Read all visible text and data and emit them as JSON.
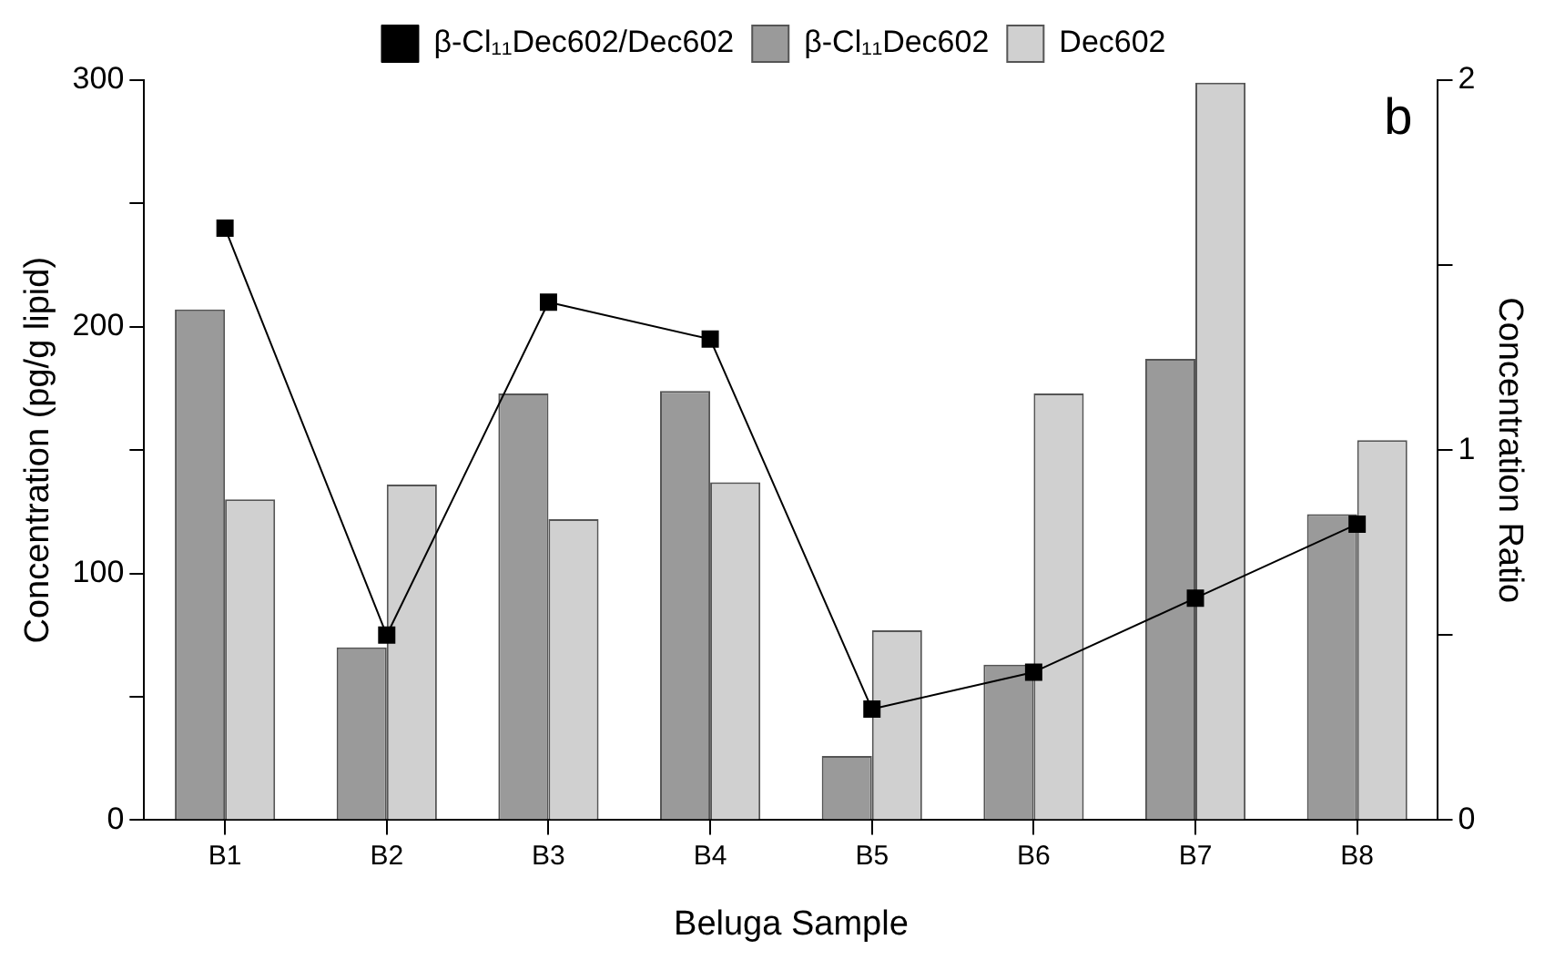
{
  "chart_data": {
    "type": "bar",
    "categories": [
      "B1",
      "B2",
      "B3",
      "B4",
      "B5",
      "B6",
      "B7",
      "B8"
    ],
    "xlabel": "Beluga Sample",
    "ylabel": "Concentration (pg/g lipid)",
    "y2label": "Concentration Ratio",
    "series": [
      {
        "name": "β-Cl₁₁Dec602/Dec602",
        "type": "line",
        "axis": "y2",
        "color": "#000000",
        "values": [
          1.6,
          0.5,
          1.4,
          1.3,
          0.3,
          0.4,
          0.6,
          0.8
        ]
      },
      {
        "name": "β-Cl₁₁Dec602",
        "color": "#9a9a9a",
        "values": [
          207,
          70,
          173,
          174,
          26,
          63,
          187,
          124
        ]
      },
      {
        "name": "Dec602",
        "color": "#d0d0d0",
        "values": [
          130,
          136,
          122,
          137,
          77,
          173,
          299,
          154
        ]
      }
    ],
    "ylim": [
      0,
      300
    ],
    "yticks": [
      0,
      {
        "value": 50,
        "label": null
      },
      100,
      {
        "value": 150,
        "label": null
      },
      200,
      {
        "value": 250,
        "label": null
      },
      300
    ],
    "y2lim": [
      0,
      2
    ],
    "y2ticks": [
      0,
      {
        "value": 0.5,
        "label": null
      },
      1,
      {
        "value": 1.5,
        "label": null
      },
      2
    ],
    "annotations": [
      "b"
    ],
    "grid": false,
    "legend": "top",
    "marker": "square",
    "line_style": "solid"
  }
}
